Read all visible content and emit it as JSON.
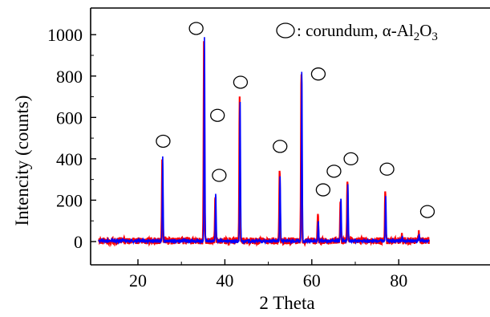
{
  "chart_data": {
    "type": "line",
    "xlabel": "2 Theta",
    "ylabel": "Intencity (counts)",
    "xlim": [
      11,
      87
    ],
    "ylim": [
      -20,
      1060
    ],
    "x_ticks": [
      20,
      40,
      60,
      80
    ],
    "y_ticks": [
      0,
      200,
      400,
      600,
      800,
      1000
    ],
    "grid": false,
    "legend": {
      "placement": "top-right",
      "marker": "open-circle",
      "text_prefix": ": corundum, α-Al",
      "sub1": "2",
      "text_mid": "O",
      "sub2": "3"
    },
    "series": [
      {
        "color": "#ff0000",
        "peaks": [
          [
            25.6,
            415
          ],
          [
            35.2,
            995
          ],
          [
            37.8,
            210
          ],
          [
            43.4,
            690
          ],
          [
            52.6,
            360
          ],
          [
            57.6,
            835
          ],
          [
            61.4,
            140
          ],
          [
            66.6,
            200
          ],
          [
            68.2,
            305
          ],
          [
            76.9,
            250
          ],
          [
            80.7,
            25
          ],
          [
            84.6,
            35
          ]
        ]
      },
      {
        "color": "#0000ff",
        "peaks": [
          [
            25.7,
            405
          ],
          [
            35.3,
            990
          ],
          [
            37.9,
            225
          ],
          [
            43.5,
            680
          ],
          [
            52.7,
            315
          ],
          [
            57.7,
            840
          ],
          [
            61.5,
            100
          ],
          [
            66.7,
            215
          ],
          [
            68.3,
            270
          ],
          [
            77.0,
            220
          ],
          [
            80.8,
            20
          ],
          [
            84.7,
            25
          ]
        ]
      }
    ],
    "peak_markers": [
      {
        "x": 25.8,
        "y": 485
      },
      {
        "x": 33.4,
        "y": 1030
      },
      {
        "x": 38.3,
        "y": 610
      },
      {
        "x": 38.7,
        "y": 320
      },
      {
        "x": 43.6,
        "y": 770
      },
      {
        "x": 52.7,
        "y": 460
      },
      {
        "x": 61.5,
        "y": 810
      },
      {
        "x": 62.6,
        "y": 250
      },
      {
        "x": 65.1,
        "y": 340
      },
      {
        "x": 69.0,
        "y": 400
      },
      {
        "x": 77.3,
        "y": 350
      },
      {
        "x": 86.6,
        "y": 145
      }
    ]
  }
}
